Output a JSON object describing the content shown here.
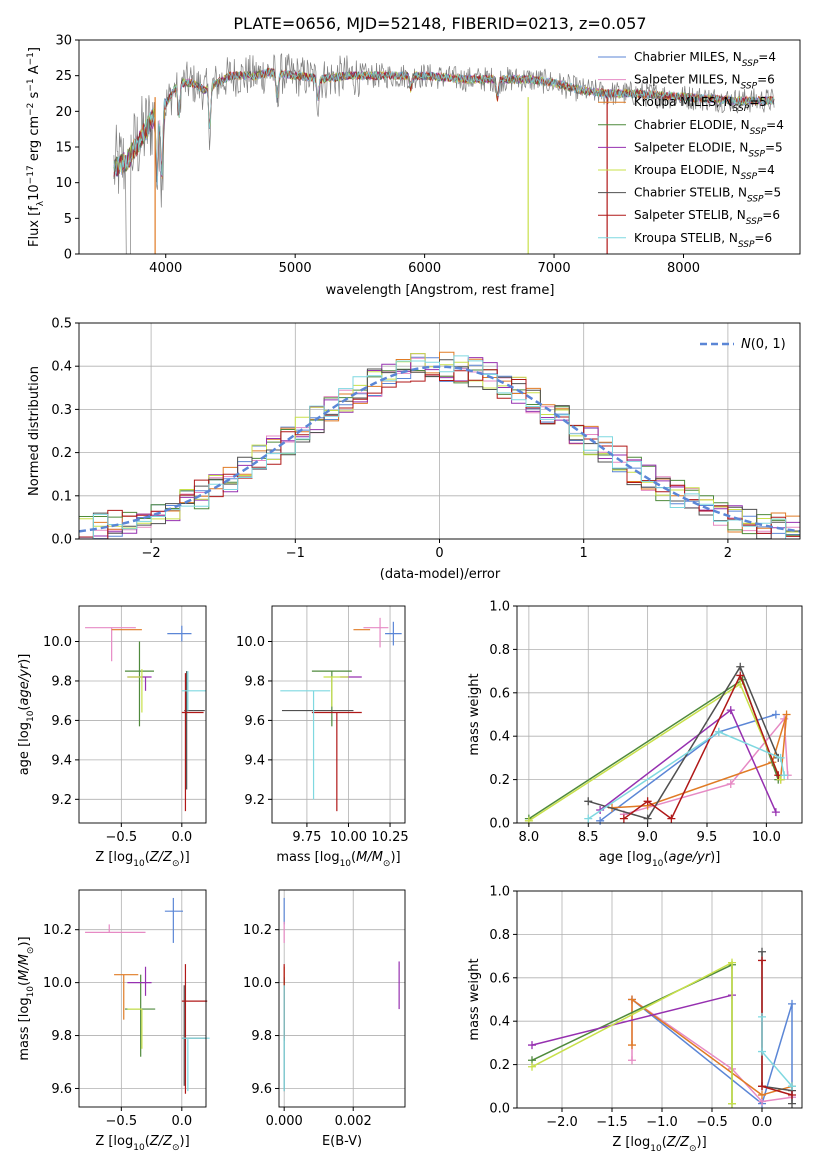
{
  "figure": {
    "title": "PLATE=0656, MJD=52148, FIBERID=0213, z=0.057"
  },
  "colors": {
    "Chabrier MILES": "#5b86d6",
    "Salpeter MILES": "#e68ac4",
    "Kroupa MILES": "#e07b25",
    "Chabrier ELODIE": "#4f8a3c",
    "Salpeter ELODIE": "#9630b0",
    "Kroupa ELODIE": "#c8e04a",
    "Chabrier STELIB": "#505050",
    "Salpeter STELIB": "#b01818",
    "Kroupa STELIB": "#7fd8e0",
    "data": "#808080",
    "grid": "#b0b0b0",
    "normal": "#5b86d6"
  },
  "chart_data": [
    {
      "id": "spectrum",
      "type": "line",
      "xlabel": "wavelength [Angstrom, rest frame]",
      "ylabel": "Flux [f_λ10^-17 erg cm^-2 s^-1 A^-1]",
      "xlim": [
        3330,
        8900
      ],
      "ylim": [
        0,
        30
      ],
      "xticks": [
        4000,
        5000,
        6000,
        7000,
        8000
      ],
      "yticks": [
        0,
        5,
        10,
        15,
        20,
        25,
        30
      ],
      "grid": false,
      "legend_position": "top-right",
      "continuum": [
        [
          3600,
          12
        ],
        [
          3700,
          13
        ],
        [
          3800,
          16
        ],
        [
          3900,
          19
        ],
        [
          4000,
          21
        ],
        [
          4100,
          24
        ],
        [
          4200,
          24
        ],
        [
          4300,
          23
        ],
        [
          4400,
          24
        ],
        [
          4500,
          25
        ],
        [
          4700,
          25
        ],
        [
          4800,
          25.5
        ],
        [
          5000,
          25
        ],
        [
          5200,
          24.5
        ],
        [
          5400,
          25
        ],
        [
          5700,
          25
        ],
        [
          6000,
          25
        ],
        [
          6300,
          24.5
        ],
        [
          6600,
          24.5
        ],
        [
          6800,
          24.5
        ],
        [
          7000,
          24
        ],
        [
          7200,
          23
        ],
        [
          7400,
          22.5
        ],
        [
          7600,
          22.5
        ],
        [
          8000,
          22
        ],
        [
          8400,
          21.5
        ],
        [
          8700,
          21.5
        ]
      ],
      "series": [
        {
          "name": "Chabrier MILES",
          "nssp": "4"
        },
        {
          "name": "Salpeter MILES",
          "nssp": "6"
        },
        {
          "name": "Kroupa MILES",
          "nssp": "5"
        },
        {
          "name": "Chabrier ELODIE",
          "nssp": "4"
        },
        {
          "name": "Salpeter ELODIE",
          "nssp": "5"
        },
        {
          "name": "Kroupa ELODIE",
          "nssp": "4"
        },
        {
          "name": "Chabrier STELIB",
          "nssp": "5"
        },
        {
          "name": "Salpeter STELIB",
          "nssp": "6"
        },
        {
          "name": "Kroupa STELIB",
          "nssp": "6"
        }
      ]
    },
    {
      "id": "residuals",
      "type": "bar",
      "xlabel": "(data-model)/error",
      "ylabel": "Normed distribution",
      "xlim": [
        -2.5,
        2.5
      ],
      "ylim": [
        0,
        0.5
      ],
      "xticks": [
        -2,
        -1,
        0,
        1,
        2
      ],
      "yticks": [
        0.0,
        0.1,
        0.2,
        0.3,
        0.4,
        0.5
      ],
      "grid": true,
      "legend_position": "top-right",
      "legend_label": "N(0,1)",
      "bin_width": 0.1,
      "bin_start": -2.5
    },
    {
      "id": "age-vs-Z",
      "type": "scatter",
      "xlabel": "Z [log10(Z/Z⊙)]",
      "ylabel": "age [log10(age/yr)]",
      "xlim": [
        -0.85,
        0.2
      ],
      "ylim": [
        9.08,
        10.18
      ],
      "xticks": [
        -0.5,
        0.0
      ],
      "yticks": [
        9.2,
        9.4,
        9.6,
        9.8,
        10.0
      ],
      "grid": true,
      "points": [
        {
          "series": "Chabrier MILES",
          "x": 0.0,
          "y": 10.04,
          "xerr": [
            0.12,
            0.08
          ],
          "yerr": [
            0.04,
            0.04
          ]
        },
        {
          "series": "Salpeter MILES",
          "x": -0.58,
          "y": 10.07,
          "xerr": [
            0.22,
            0.2
          ],
          "yerr": [
            0.17,
            0.0
          ]
        },
        {
          "series": "Kroupa MILES",
          "x": -0.48,
          "y": 10.06,
          "xerr": [
            0.1,
            0.15
          ],
          "yerr": [
            0.0,
            0.0
          ]
        },
        {
          "series": "Chabrier ELODIE",
          "x": -0.35,
          "y": 9.85,
          "xerr": [
            0.12,
            0.12
          ],
          "yerr": [
            0.28,
            0.15
          ]
        },
        {
          "series": "Salpeter ELODIE",
          "x": -0.3,
          "y": 9.82,
          "xerr": [
            0.15,
            0.05
          ],
          "yerr": [
            0.07,
            0.0
          ]
        },
        {
          "series": "Kroupa ELODIE",
          "x": -0.33,
          "y": 9.82,
          "xerr": [
            0.12,
            0.0
          ],
          "yerr": [
            0.18,
            0.04
          ]
        },
        {
          "series": "Chabrier STELIB",
          "x": 0.04,
          "y": 9.65,
          "xerr": [
            0.02,
            0.15
          ],
          "yerr": [
            0.4,
            0.2
          ]
        },
        {
          "series": "Salpeter STELIB",
          "x": 0.03,
          "y": 9.64,
          "xerr": [
            0.03,
            0.15
          ],
          "yerr": [
            0.5,
            0.2
          ]
        },
        {
          "series": "Kroupa STELIB",
          "x": 0.05,
          "y": 9.75,
          "xerr": [
            0.05,
            0.15
          ],
          "yerr": [
            0.1,
            0.1
          ]
        }
      ]
    },
    {
      "id": "age-vs-mass",
      "type": "scatter",
      "xlabel": "mass [log10(M/M⊙)]",
      "ylabel": "",
      "xlim": [
        9.54,
        10.34
      ],
      "ylim": [
        9.08,
        10.18
      ],
      "xticks": [
        9.75,
        10.0,
        10.25
      ],
      "tick_labels": [
        "9.75",
        "10.00",
        "10.25"
      ],
      "yticks": [
        9.2,
        9.4,
        9.6,
        9.8,
        10.0
      ],
      "grid": true,
      "points": [
        {
          "series": "Chabrier MILES",
          "x": 10.27,
          "y": 10.04,
          "xerr": [
            0.05,
            0.05
          ],
          "yerr": [
            0.06,
            0.06
          ]
        },
        {
          "series": "Salpeter MILES",
          "x": 10.19,
          "y": 10.07,
          "xerr": [
            0.1,
            0.05
          ],
          "yerr": [
            0.1,
            0.05
          ]
        },
        {
          "series": "Kroupa MILES",
          "x": 10.03,
          "y": 10.06,
          "xerr": [
            0.0,
            0.1
          ],
          "yerr": [
            0.0,
            0.0
          ]
        },
        {
          "series": "Chabrier ELODIE",
          "x": 9.9,
          "y": 9.85,
          "xerr": [
            0.12,
            0.12
          ],
          "yerr": [
            0.28,
            0.0
          ]
        },
        {
          "series": "Salpeter ELODIE",
          "x": 10.0,
          "y": 9.82,
          "xerr": [
            0.05,
            0.08
          ],
          "yerr": [
            0.0,
            0.0
          ]
        },
        {
          "series": "Kroupa ELODIE",
          "x": 9.9,
          "y": 9.82,
          "xerr": [
            0.05,
            0.1
          ],
          "yerr": [
            0.15,
            0.0
          ]
        },
        {
          "series": "Chabrier STELIB",
          "x": 9.93,
          "y": 9.65,
          "xerr": [
            0.33,
            0.1
          ],
          "yerr": [
            0.0,
            0.0
          ]
        },
        {
          "series": "Salpeter STELIB",
          "x": 9.93,
          "y": 9.64,
          "xerr": [
            0.15,
            0.15
          ],
          "yerr": [
            0.5,
            0.0
          ]
        },
        {
          "series": "Kroupa STELIB",
          "x": 9.79,
          "y": 9.75,
          "xerr": [
            0.2,
            0.1
          ],
          "yerr": [
            0.55,
            0.0
          ]
        }
      ]
    },
    {
      "id": "weight-vs-age",
      "type": "line",
      "xlabel": "age [log10(age/yr)]",
      "ylabel": "mass weight",
      "xlim": [
        7.9,
        10.3
      ],
      "ylim": [
        0,
        1
      ],
      "xticks": [
        8.0,
        8.5,
        9.0,
        9.5,
        10.0
      ],
      "yticks": [
        0.0,
        0.2,
        0.4,
        0.6,
        0.8,
        1.0
      ],
      "grid": true,
      "series": [
        {
          "name": "Chabrier MILES",
          "x": [
            8.6,
            9.6,
            10.08
          ],
          "y": [
            0.01,
            0.42,
            0.5
          ]
        },
        {
          "name": "Salpeter MILES",
          "x": [
            8.8,
            9.7,
            10.15,
            10.18
          ],
          "y": [
            0.04,
            0.18,
            0.48,
            0.22
          ]
        },
        {
          "name": "Kroupa MILES",
          "x": [
            8.7,
            9.0,
            10.05,
            10.17,
            10.12
          ],
          "y": [
            0.07,
            0.08,
            0.28,
            0.5,
            0.2
          ]
        },
        {
          "name": "Chabrier ELODIE",
          "x": [
            8.0,
            9.8,
            10.1
          ],
          "y": [
            0.02,
            0.66,
            0.2
          ]
        },
        {
          "name": "Salpeter ELODIE",
          "x": [
            8.6,
            9.7,
            10.08
          ],
          "y": [
            0.06,
            0.52,
            0.05
          ]
        },
        {
          "name": "Kroupa ELODIE",
          "x": [
            8.0,
            9.78,
            10.12
          ],
          "y": [
            0.01,
            0.64,
            0.2
          ]
        },
        {
          "name": "Chabrier STELIB",
          "x": [
            8.5,
            9.0,
            9.78,
            10.1
          ],
          "y": [
            0.1,
            0.02,
            0.72,
            0.3
          ]
        },
        {
          "name": "Salpeter STELIB",
          "x": [
            8.8,
            9.0,
            9.2,
            9.78,
            10.1
          ],
          "y": [
            0.02,
            0.1,
            0.02,
            0.68,
            0.22
          ]
        },
        {
          "name": "Kroupa STELIB",
          "x": [
            8.5,
            9.6,
            10.12,
            10.15
          ],
          "y": [
            0.02,
            0.42,
            0.3,
            0.22
          ]
        }
      ]
    },
    {
      "id": "mass-vs-Z",
      "type": "scatter",
      "xlabel": "Z [log10(Z/Z⊙)]",
      "ylabel": "mass [log10(M/M⊙)]",
      "xlim": [
        -0.85,
        0.2
      ],
      "ylim": [
        9.53,
        10.35
      ],
      "xticks": [
        -0.5,
        0.0
      ],
      "yticks": [
        9.6,
        9.8,
        10.0,
        10.2
      ],
      "grid": true,
      "points": [
        {
          "series": "Chabrier MILES",
          "x": -0.07,
          "y": 10.27,
          "xerr": [
            0.07,
            0.08
          ],
          "yerr": [
            0.12,
            0.05
          ]
        },
        {
          "series": "Salpeter MILES",
          "x": -0.6,
          "y": 10.19,
          "xerr": [
            0.2,
            0.3
          ],
          "yerr": [
            0.0,
            0.03
          ]
        },
        {
          "series": "Kroupa MILES",
          "x": -0.48,
          "y": 10.03,
          "xerr": [
            0.08,
            0.12
          ],
          "yerr": [
            0.17,
            0.0
          ]
        },
        {
          "series": "Chabrier ELODIE",
          "x": -0.34,
          "y": 9.9,
          "xerr": [
            0.13,
            0.12
          ],
          "yerr": [
            0.18,
            0.13
          ]
        },
        {
          "series": "Salpeter ELODIE",
          "x": -0.3,
          "y": 10.0,
          "xerr": [
            0.15,
            0.05
          ],
          "yerr": [
            0.05,
            0.06
          ]
        },
        {
          "series": "Kroupa ELODIE",
          "x": -0.33,
          "y": 9.9,
          "xerr": [
            0.12,
            0.0
          ],
          "yerr": [
            0.15,
            0.0
          ]
        },
        {
          "series": "Chabrier STELIB",
          "x": 0.02,
          "y": 9.79,
          "xerr": [
            0.02,
            0.18
          ],
          "yerr": [
            0.18,
            0.2
          ]
        },
        {
          "series": "Salpeter STELIB",
          "x": 0.03,
          "y": 9.93,
          "xerr": [
            0.03,
            0.18
          ],
          "yerr": [
            0.35,
            0.14
          ]
        },
        {
          "series": "Kroupa STELIB",
          "x": 0.05,
          "y": 9.79,
          "xerr": [
            0.05,
            0.18
          ],
          "yerr": [
            0.2,
            0.0
          ]
        }
      ]
    },
    {
      "id": "mass-vs-ebv",
      "type": "scatter",
      "xlabel": "E(B-V)",
      "ylabel": "",
      "xlim": [
        -0.00015,
        0.0035
      ],
      "ylim": [
        9.53,
        10.35
      ],
      "xticks": [
        0.0,
        0.002
      ],
      "tick_labels": [
        "0.000",
        "0.002"
      ],
      "yticks": [
        9.6,
        9.8,
        10.0,
        10.2
      ],
      "grid": true,
      "points": [
        {
          "series": "Chabrier MILES",
          "x": 0.0,
          "y": 10.27,
          "xerr": [
            0,
            0
          ],
          "yerr": [
            0.05,
            0.05
          ]
        },
        {
          "series": "Salpeter MILES",
          "x": 0.0,
          "y": 10.19,
          "xerr": [
            0,
            0
          ],
          "yerr": [
            0.04,
            0.04
          ]
        },
        {
          "series": "Kroupa MILES",
          "x": 0.0,
          "y": 10.03,
          "xerr": [
            0,
            0
          ],
          "yerr": [
            0.03,
            0.03
          ]
        },
        {
          "series": "Chabrier ELODIE",
          "x": 0.0,
          "y": 9.9,
          "xerr": [
            0,
            0
          ],
          "yerr": [
            0.12,
            0.12
          ]
        },
        {
          "series": "Salpeter ELODIE",
          "x": 0.00333,
          "y": 9.99,
          "xerr": [
            0,
            0
          ],
          "yerr": [
            0.09,
            0.09
          ]
        },
        {
          "series": "Kroupa ELODIE",
          "x": 0.0,
          "y": 9.9,
          "xerr": [
            0,
            0
          ],
          "yerr": [
            0.1,
            0.1
          ]
        },
        {
          "series": "Chabrier STELIB",
          "x": 0.0,
          "y": 9.79,
          "xerr": [
            0,
            0
          ],
          "yerr": [
            0.2,
            0.2
          ]
        },
        {
          "series": "Salpeter STELIB",
          "x": 0.0,
          "y": 9.93,
          "xerr": [
            0,
            0
          ],
          "yerr": [
            0.14,
            0.14
          ]
        },
        {
          "series": "Kroupa STELIB",
          "x": 0.0,
          "y": 9.79,
          "xerr": [
            0,
            0
          ],
          "yerr": [
            0.2,
            0.2
          ]
        }
      ]
    },
    {
      "id": "weight-vs-Z",
      "type": "line",
      "xlabel": "Z [log10(Z/Z⊙)]",
      "ylabel": "mass weight",
      "xlim": [
        -2.45,
        0.4
      ],
      "ylim": [
        0,
        1
      ],
      "xticks": [
        -2.0,
        -1.5,
        -1.0,
        -0.5,
        0.0
      ],
      "yticks": [
        0.0,
        0.2,
        0.4,
        0.6,
        0.8,
        1.0
      ],
      "grid": true,
      "series": [
        {
          "name": "Chabrier MILES",
          "x": [
            -1.3,
            0.0,
            0.3,
            0.3
          ],
          "y": [
            0.5,
            0.02,
            0.48,
            0.05
          ]
        },
        {
          "name": "Salpeter MILES",
          "x": [
            -1.3,
            -1.3,
            -0.3,
            0.0,
            0.3
          ],
          "y": [
            0.22,
            0.5,
            0.18,
            0.03,
            0.05
          ]
        },
        {
          "name": "Kroupa MILES",
          "x": [
            -1.3,
            -1.3,
            0.0,
            0.3
          ],
          "y": [
            0.29,
            0.5,
            0.06,
            0.1
          ]
        },
        {
          "name": "Chabrier ELODIE",
          "x": [
            -2.3,
            -0.3,
            -0.3
          ],
          "y": [
            0.22,
            0.66,
            0.02
          ]
        },
        {
          "name": "Salpeter ELODIE",
          "x": [
            -2.3,
            -0.3
          ],
          "y": [
            0.29,
            0.52
          ]
        },
        {
          "name": "Kroupa ELODIE",
          "x": [
            -2.3,
            -0.3,
            -0.3
          ],
          "y": [
            0.19,
            0.67,
            0.02
          ]
        },
        {
          "name": "Chabrier STELIB",
          "x": [
            0.0,
            0.0,
            0.3,
            0.3
          ],
          "y": [
            0.72,
            0.1,
            0.08,
            0.02
          ]
        },
        {
          "name": "Salpeter STELIB",
          "x": [
            0.0,
            0.0,
            0.3
          ],
          "y": [
            0.68,
            0.1,
            0.06
          ]
        },
        {
          "name": "Kroupa STELIB",
          "x": [
            0.0,
            0.0,
            0.3
          ],
          "y": [
            0.42,
            0.26,
            0.1
          ]
        }
      ]
    }
  ]
}
